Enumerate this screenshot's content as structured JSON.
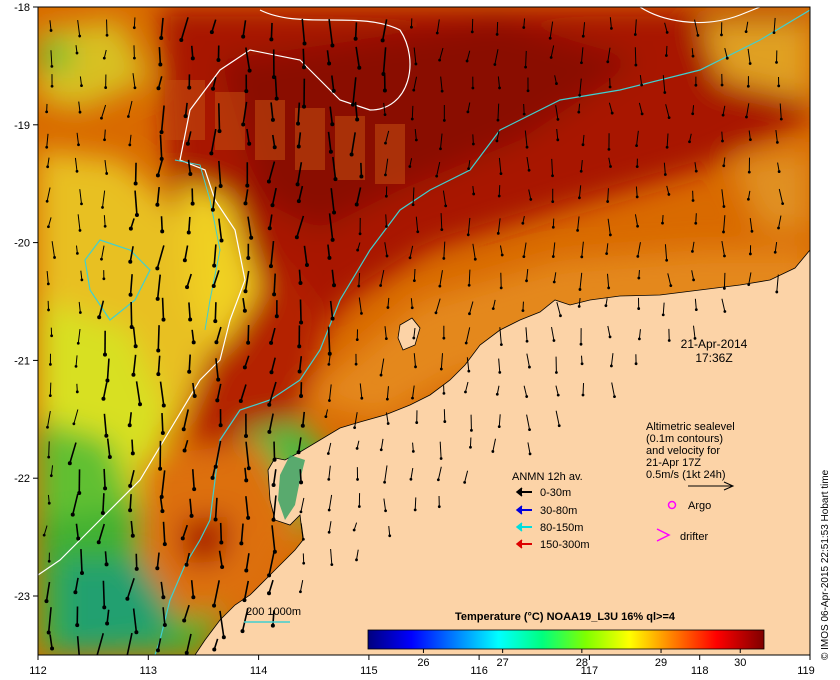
{
  "map": {
    "lon_range": [
      112,
      119
    ],
    "lat_range": [
      -23.5,
      -18
    ],
    "x_ticks": [
      "112",
      "113",
      "114",
      "115",
      "116",
      "117",
      "118",
      "119"
    ],
    "y_ticks": [
      "-18",
      "-19",
      "-20",
      "-21",
      "-22",
      "-23"
    ]
  },
  "timestamp": {
    "date": "21-Apr-2014",
    "time": "17:36Z"
  },
  "altimetry_note": {
    "lines": [
      "Altimetric sealevel",
      "(0.1m contours)",
      "and velocity for",
      "21-Apr 17Z",
      "0.5m/s (1kt 24h)"
    ]
  },
  "anmn_legend": {
    "title": "ANMN 12h av.",
    "items": [
      {
        "label": "0-30m",
        "color": "#000000"
      },
      {
        "label": "30-80m",
        "color": "#0000dd"
      },
      {
        "label": "80-150m",
        "color": "#00dddd"
      },
      {
        "label": "150-300m",
        "color": "#dd0000"
      }
    ]
  },
  "symbols": {
    "argo": {
      "label": "Argo",
      "color": "#ff00ff"
    },
    "drifter": {
      "label": "drifter",
      "color": "#ff00ff"
    }
  },
  "isobath_legend": {
    "label": "200  1000m"
  },
  "colorbar": {
    "title": "Temperature (°C) NOAA19_L3U 16% ql>=4",
    "min": 25.3,
    "max": 30.3,
    "ticks": [
      "26",
      "27",
      "28",
      "29",
      "30"
    ],
    "tick_values": [
      26,
      27,
      28,
      29,
      30
    ],
    "stops": [
      "#00007f",
      "#0000ff",
      "#007fff",
      "#00ffff",
      "#00ff7f",
      "#7fff00",
      "#ffff00",
      "#ff7f00",
      "#ff0000",
      "#7f0000"
    ]
  },
  "credit": "© IMOS 06-Apr-2015 22:51:53 Hobart time",
  "colors": {
    "land": "#fcd3a7",
    "warm_dark": "#a01000",
    "warm": "#cc3a00",
    "orange": "#e07a00",
    "yellow": "#f0e010",
    "green": "#50c030",
    "teal": "#20a080",
    "isobath_200": "#40d0d0",
    "isobath_1000": "#ffffff"
  }
}
